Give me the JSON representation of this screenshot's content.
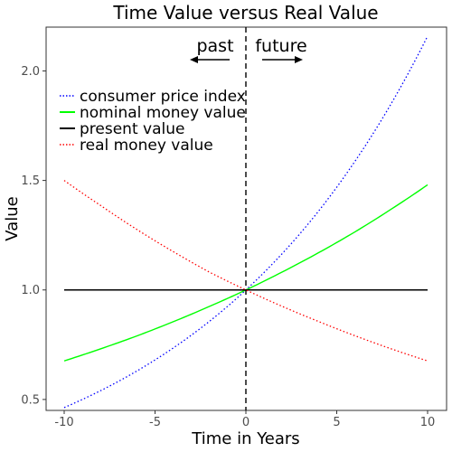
{
  "chart_data": {
    "type": "line",
    "title": "Time Value versus Real Value",
    "xlabel": "Time in Years",
    "ylabel": "Value",
    "xlim": [
      -10,
      10
    ],
    "ylim": [
      0.45,
      2.2
    ],
    "xticks": [
      -10,
      -5,
      0,
      5,
      10
    ],
    "xtick_labels": [
      "-10",
      "-5",
      "0",
      "5",
      "10"
    ],
    "yticks": [
      0.5,
      1.0,
      1.5,
      2.0
    ],
    "ytick_labels": [
      "0.5",
      "1.0",
      "1.5",
      "2.0"
    ],
    "grid": false,
    "legend_position": "top-left",
    "series": [
      {
        "name": "consumer price index",
        "color": "#0000ff",
        "dash": "dotted",
        "x": [
          -10,
          -8,
          -6,
          -4,
          -2,
          0,
          2,
          4,
          6,
          8,
          10
        ],
        "y": [
          0.463,
          0.54,
          0.63,
          0.735,
          0.857,
          1.0,
          1.166,
          1.36,
          1.587,
          1.851,
          2.159
        ]
      },
      {
        "name": "nominal money value",
        "color": "#00ff00",
        "dash": "solid",
        "x": [
          -10,
          -8,
          -6,
          -4,
          -2,
          0,
          2,
          4,
          6,
          8,
          10
        ],
        "y": [
          0.676,
          0.731,
          0.79,
          0.855,
          0.925,
          1.0,
          1.082,
          1.17,
          1.265,
          1.369,
          1.48
        ]
      },
      {
        "name": "present value",
        "color": "#000000",
        "dash": "solid",
        "x": [
          -10,
          10
        ],
        "y": [
          1.0,
          1.0
        ]
      },
      {
        "name": "real money value",
        "color": "#ff0000",
        "dash": "dotted",
        "x": [
          -10,
          -8,
          -6,
          -4,
          -2,
          0,
          2,
          4,
          6,
          8,
          10
        ],
        "y": [
          1.5,
          1.386,
          1.276,
          1.175,
          1.081,
          1.0,
          0.925,
          0.856,
          0.791,
          0.731,
          0.676
        ]
      }
    ],
    "vline": {
      "x": 0,
      "color": "#000000",
      "dash": "dashed"
    },
    "annotations": {
      "past": {
        "text": "past",
        "arrow": "left"
      },
      "future": {
        "text": "future",
        "arrow": "right"
      }
    }
  }
}
